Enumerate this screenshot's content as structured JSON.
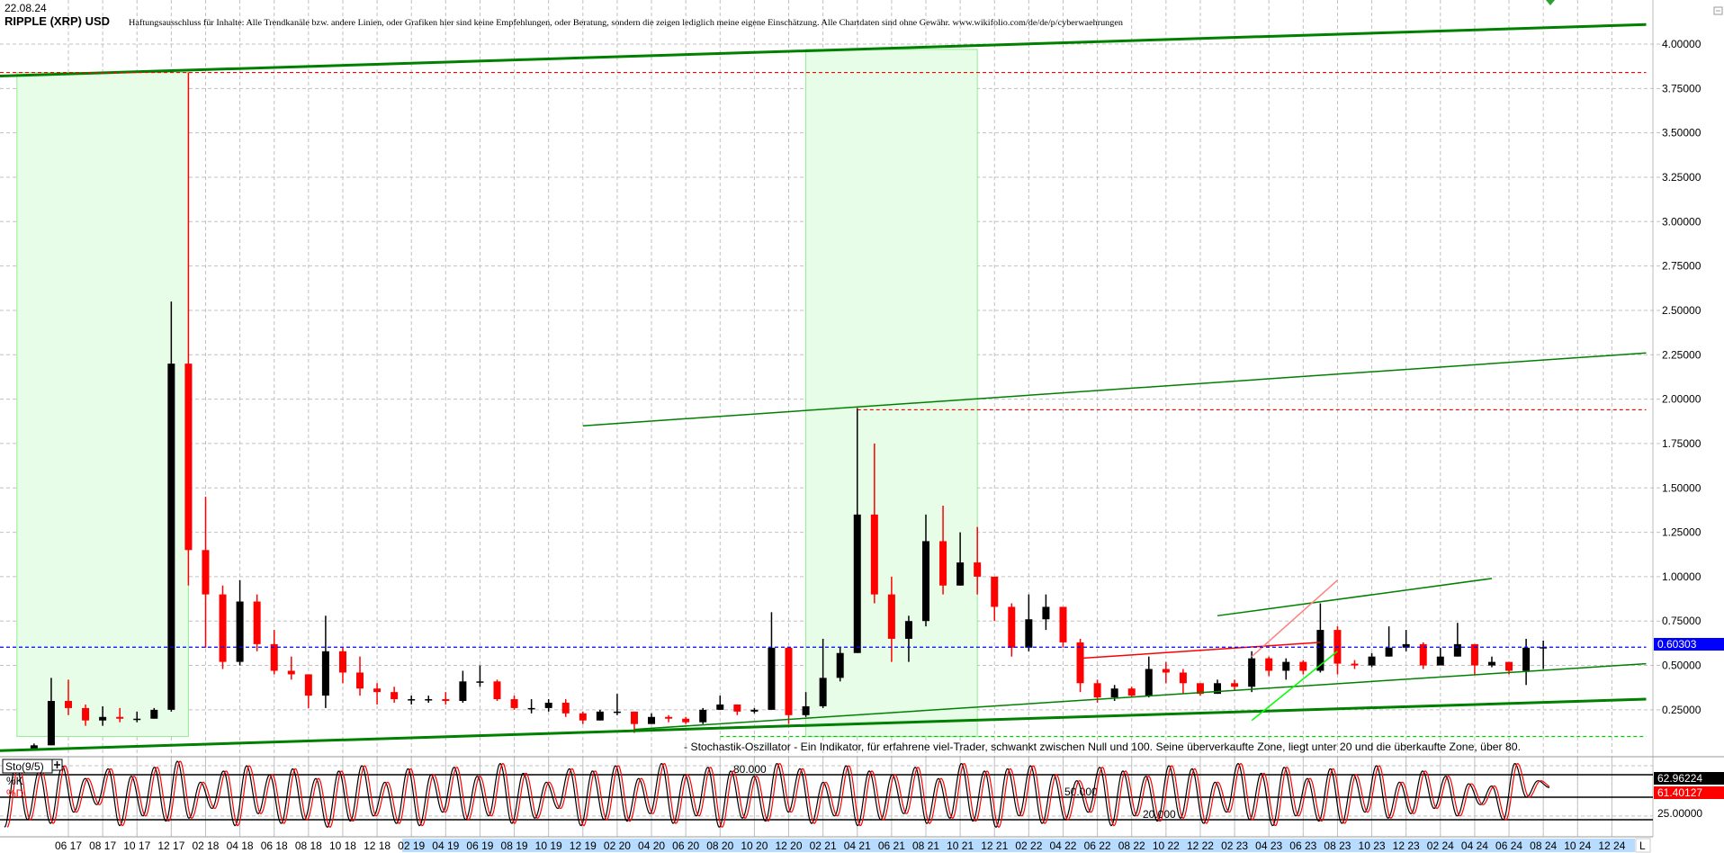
{
  "header": {
    "date": "22.08.24",
    "title": "RIPPLE (XRP) USD",
    "disclaimer": "Haftungsausschluss für Inhalte: Alle Trendkanäle bzw. andere Linien, oder Grafiken hier sind keine Empfehlungen, oder Beratung, sondern die zeigen lediglich meine eigene Einschätzung. Alle Chartdaten sind ohne Gewähr.  www.wikifolio.com/de/de/p/cyberwaehrungen"
  },
  "indicator_caption": "- Stochastik-Oszillator - Ein Indikator, für erfahrene viel-Trader, schwankt zwischen Null und 100. Seine überverkaufte Zone, liegt unter 20 und die überkaufte Zone, über 80.",
  "chart_data": [
    {
      "type": "candlestick",
      "title": "RIPPLE (XRP) USD",
      "ylim": [
        0.0,
        4.15
      ],
      "grid": true,
      "y_ticks": [
        "4.00000",
        "3.75000",
        "3.50000",
        "3.25000",
        "3.00000",
        "2.75000",
        "2.50000",
        "2.25000",
        "2.00000",
        "1.75000",
        "1.50000",
        "1.25000",
        "1.00000",
        "0.75000",
        "0.50000",
        "0.25000"
      ],
      "x_ticks": [
        "06 17",
        "08 17",
        "10 17",
        "12 17",
        "02 18",
        "04 18",
        "06 18",
        "08 18",
        "10 18",
        "12 18",
        "02 19",
        "04 19",
        "06 19",
        "08 19",
        "10 19",
        "12 19",
        "02 20",
        "04 20",
        "06 20",
        "08 20",
        "10 20",
        "12 20",
        "02 21",
        "04 21",
        "06 21",
        "08 21",
        "10 21",
        "12 21",
        "02 22",
        "04 22",
        "06 22",
        "08 22",
        "10 22",
        "12 22",
        "02 23",
        "04 23",
        "06 23",
        "08 23",
        "10 23",
        "12 23",
        "02 24",
        "04 24",
        "06 24",
        "08 24",
        "10 24",
        "12 24"
      ],
      "x_axis_end_label": "L",
      "last_price": "0.60303",
      "colors": {
        "up": "#000000",
        "down": "#ff0000",
        "last_price": "#0000ff",
        "trendline": "#008000",
        "zone": "#e8fde8"
      },
      "months": [
        "2017-04",
        "2017-05",
        "2017-06",
        "2017-07",
        "2017-08",
        "2017-09",
        "2017-10",
        "2017-11",
        "2017-12",
        "2018-01",
        "2018-02",
        "2018-03",
        "2018-04",
        "2018-05",
        "2018-06",
        "2018-07",
        "2018-08",
        "2018-09",
        "2018-10",
        "2018-11",
        "2018-12",
        "2019-01",
        "2019-02",
        "2019-03",
        "2019-04",
        "2019-05",
        "2019-06",
        "2019-07",
        "2019-08",
        "2019-09",
        "2019-10",
        "2019-11",
        "2019-12",
        "2020-01",
        "2020-02",
        "2020-03",
        "2020-04",
        "2020-05",
        "2020-06",
        "2020-07",
        "2020-08",
        "2020-09",
        "2020-10",
        "2020-11",
        "2020-12",
        "2021-01",
        "2021-02",
        "2021-03",
        "2021-04",
        "2021-05",
        "2021-06",
        "2021-07",
        "2021-08",
        "2021-09",
        "2021-10",
        "2021-11",
        "2021-12",
        "2022-01",
        "2022-02",
        "2022-03",
        "2022-04",
        "2022-05",
        "2022-06",
        "2022-07",
        "2022-08",
        "2022-09",
        "2022-10",
        "2022-11",
        "2022-12",
        "2023-01",
        "2023-02",
        "2023-03",
        "2023-04",
        "2023-05",
        "2023-06",
        "2023-07",
        "2023-08",
        "2023-09",
        "2023-10",
        "2023-11",
        "2023-12",
        "2024-01",
        "2024-02",
        "2024-03",
        "2024-04",
        "2024-05",
        "2024-06",
        "2024-07",
        "2024-08"
      ],
      "close": [
        0.05,
        0.3,
        0.26,
        0.19,
        0.21,
        0.2,
        0.2,
        0.25,
        2.2,
        1.15,
        0.9,
        0.52,
        0.86,
        0.62,
        0.47,
        0.45,
        0.33,
        0.58,
        0.46,
        0.37,
        0.35,
        0.31,
        0.31,
        0.31,
        0.3,
        0.41,
        0.41,
        0.31,
        0.26,
        0.26,
        0.29,
        0.23,
        0.19,
        0.24,
        0.24,
        0.17,
        0.21,
        0.2,
        0.18,
        0.25,
        0.28,
        0.24,
        0.25,
        0.6,
        0.22,
        0.27,
        0.43,
        0.57,
        1.35,
        0.9,
        0.65,
        0.75,
        1.2,
        0.95,
        1.08,
        1.0,
        0.83,
        0.6,
        0.76,
        0.83,
        0.63,
        0.4,
        0.32,
        0.37,
        0.33,
        0.48,
        0.46,
        0.4,
        0.34,
        0.4,
        0.38,
        0.54,
        0.47,
        0.52,
        0.47,
        0.7,
        0.51,
        0.5,
        0.55,
        0.6,
        0.62,
        0.5,
        0.55,
        0.62,
        0.5,
        0.52,
        0.47,
        0.6,
        0.60303
      ],
      "high": [
        0.06,
        0.43,
        0.42,
        0.28,
        0.27,
        0.26,
        0.24,
        0.26,
        2.55,
        3.84,
        1.45,
        0.95,
        0.98,
        0.9,
        0.7,
        0.55,
        0.38,
        0.78,
        0.6,
        0.55,
        0.4,
        0.38,
        0.33,
        0.33,
        0.35,
        0.47,
        0.5,
        0.42,
        0.33,
        0.31,
        0.31,
        0.31,
        0.24,
        0.25,
        0.34,
        0.24,
        0.23,
        0.22,
        0.21,
        0.26,
        0.33,
        0.28,
        0.26,
        0.8,
        0.6,
        0.35,
        0.65,
        0.6,
        1.95,
        1.75,
        1.0,
        0.78,
        1.35,
        1.4,
        1.25,
        1.28,
        1.0,
        0.85,
        0.9,
        0.9,
        0.83,
        0.65,
        0.42,
        0.39,
        0.38,
        0.55,
        0.52,
        0.48,
        0.4,
        0.42,
        0.42,
        0.58,
        0.55,
        0.54,
        0.53,
        0.85,
        0.72,
        0.53,
        0.57,
        0.72,
        0.7,
        0.63,
        0.6,
        0.74,
        0.62,
        0.55,
        0.52,
        0.65,
        0.64
      ],
      "low": [
        0.03,
        0.05,
        0.22,
        0.16,
        0.16,
        0.18,
        0.18,
        0.2,
        0.24,
        0.95,
        0.6,
        0.48,
        0.5,
        0.58,
        0.45,
        0.42,
        0.26,
        0.26,
        0.4,
        0.33,
        0.28,
        0.29,
        0.28,
        0.29,
        0.28,
        0.29,
        0.38,
        0.3,
        0.25,
        0.23,
        0.24,
        0.21,
        0.17,
        0.19,
        0.22,
        0.12,
        0.17,
        0.18,
        0.17,
        0.17,
        0.25,
        0.22,
        0.23,
        0.25,
        0.17,
        0.21,
        0.26,
        0.41,
        0.57,
        0.85,
        0.52,
        0.52,
        0.72,
        0.9,
        0.95,
        0.9,
        0.75,
        0.55,
        0.58,
        0.7,
        0.6,
        0.35,
        0.29,
        0.3,
        0.32,
        0.32,
        0.4,
        0.34,
        0.33,
        0.34,
        0.36,
        0.35,
        0.44,
        0.42,
        0.45,
        0.46,
        0.45,
        0.48,
        0.49,
        0.55,
        0.58,
        0.48,
        0.5,
        0.55,
        0.45,
        0.49,
        0.45,
        0.39,
        0.48
      ],
      "annotations": [
        {
          "kind": "zone",
          "from": "2017-03",
          "to": "2018-01",
          "top": 3.84,
          "bottom": 0.1,
          "color": "#e8fde8",
          "edge": "#90ee90"
        },
        {
          "kind": "zone",
          "from": "2021-01",
          "to": "2021-11",
          "top": 3.97,
          "bottom": 0.1,
          "color": "#e8fde8",
          "edge": "#90ee90"
        },
        {
          "kind": "line",
          "from": [
            "2017-02",
            3.82
          ],
          "to": [
            "2025-02",
            4.11
          ],
          "color": "#008000",
          "weight": "thick"
        },
        {
          "kind": "line",
          "from": [
            "2017-02",
            0.02
          ],
          "to": [
            "2025-02",
            0.31
          ],
          "color": "#008000",
          "weight": "thick"
        },
        {
          "kind": "line",
          "from": [
            "2019-12",
            1.85
          ],
          "to": [
            "2025-02",
            2.26
          ],
          "color": "#008000",
          "weight": "thin"
        },
        {
          "kind": "line",
          "from": [
            "2020-03",
            0.14
          ],
          "to": [
            "2025-02",
            0.51
          ],
          "color": "#008000",
          "weight": "thin"
        },
        {
          "kind": "line",
          "from": [
            "2023-01",
            0.78
          ],
          "to": [
            "2024-05",
            0.99
          ],
          "color": "#008000",
          "weight": "thin"
        },
        {
          "kind": "line",
          "from": [
            "2022-05",
            0.54
          ],
          "to": [
            "2023-07",
            0.63
          ],
          "color": "#ff0000",
          "weight": "thin"
        },
        {
          "kind": "line",
          "from": [
            "2023-03",
            0.55
          ],
          "to": [
            "2023-08",
            0.98
          ],
          "color": "#ff8080",
          "weight": "thin"
        },
        {
          "kind": "line",
          "from": [
            "2023-03",
            0.19
          ],
          "to": [
            "2023-08",
            0.58
          ],
          "color": "#00ff00",
          "weight": "thin"
        },
        {
          "kind": "hline",
          "from": "2017-02",
          "to": "2025-02",
          "price": 3.84,
          "color": "#ff0000",
          "style": "dashed"
        },
        {
          "kind": "hline",
          "from": "2021-04",
          "to": "2025-02",
          "price": 1.94,
          "color": "#ff0000",
          "style": "dashed"
        },
        {
          "kind": "hline",
          "from": "2020-08",
          "to": "2025-02",
          "price": 0.1,
          "color": "#00cc00",
          "style": "dashed"
        },
        {
          "kind": "hline",
          "from": "2017-02",
          "to": "2025-02",
          "price": 0.60303,
          "color": "#0000ff",
          "style": "dashed"
        }
      ]
    },
    {
      "type": "line",
      "title": "Sto(9/5)",
      "series": [
        {
          "name": "%K",
          "color": "#000000",
          "last": "62.96224"
        },
        {
          "name": "%D",
          "color": "#ff0000",
          "last": "61.40127"
        }
      ],
      "levels": [
        {
          "value": 80,
          "label": "80.000"
        },
        {
          "value": 50,
          "label": "50.000"
        },
        {
          "value": 20,
          "label": "20.000"
        }
      ],
      "y_tick": "25.00000",
      "k_extrema": [
        10,
        95,
        20,
        85,
        15,
        92,
        30,
        75,
        40,
        88,
        12,
        78,
        25,
        90,
        18,
        98,
        22,
        70,
        35,
        85,
        12,
        92,
        28,
        80,
        15,
        88,
        20,
        75,
        10,
        85,
        18,
        92,
        25,
        70,
        15,
        88,
        12,
        80,
        30,
        90,
        20,
        78,
        25,
        95,
        15,
        82,
        22,
        70,
        35,
        88,
        12,
        85,
        20,
        92,
        18,
        75,
        28,
        95,
        15,
        80,
        25,
        90,
        10,
        85,
        22,
        78,
        18,
        95,
        30,
        88,
        15,
        70,
        25,
        92,
        12,
        85,
        20,
        80,
        28,
        90,
        15,
        75,
        22,
        95,
        18,
        85,
        10,
        88,
        25,
        92,
        15,
        80,
        20,
        72,
        30,
        90,
        12,
        85,
        25,
        78,
        18,
        92,
        22,
        88,
        15,
        70,
        30,
        95,
        20,
        82,
        12,
        90,
        25,
        75,
        18,
        88,
        15,
        80,
        30,
        92,
        22,
        70,
        28,
        85,
        35,
        78,
        25,
        68,
        40,
        65,
        20,
        95,
        50,
        72,
        62.96
      ]
    }
  ]
}
